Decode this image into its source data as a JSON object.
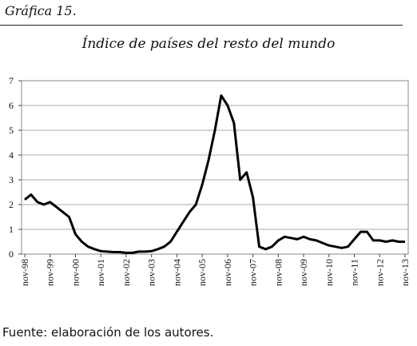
{
  "figure_label": "Gráfica 15.",
  "source_note": "Fuente: elaboración de los autores.",
  "chart_data": {
    "type": "line",
    "title": "Índice de países del resto del mundo",
    "xlabel": "",
    "ylabel": "",
    "ylim": [
      0,
      7
    ],
    "yticks": [
      0,
      1,
      2,
      3,
      4,
      5,
      6,
      7
    ],
    "x_tick_labels": [
      "nov-98",
      "nov-99",
      "nov-00",
      "nov-01",
      "nov-02",
      "nov-03",
      "nov-04",
      "nov-05",
      "nov-06",
      "nov-07",
      "nov-08",
      "nov-09",
      "nov-10",
      "nov-11",
      "nov-12",
      "nov-13"
    ],
    "grid": "horizontal",
    "legend": "none",
    "line_color": "#000000",
    "series": [
      {
        "x": [
          "nov-98",
          "feb-99",
          "may-99",
          "ago-99",
          "nov-99",
          "feb-00",
          "may-00",
          "ago-00",
          "nov-00",
          "feb-01",
          "may-01",
          "ago-01",
          "nov-01",
          "feb-02",
          "may-02",
          "ago-02",
          "nov-02",
          "feb-03",
          "may-03",
          "ago-03",
          "nov-03",
          "feb-04",
          "may-04",
          "ago-04",
          "nov-04",
          "feb-05",
          "may-05",
          "ago-05",
          "nov-05",
          "feb-06",
          "may-06",
          "ago-06",
          "nov-06",
          "feb-07",
          "may-07",
          "ago-07",
          "nov-07",
          "feb-08",
          "may-08",
          "ago-08",
          "nov-08",
          "feb-09",
          "may-09",
          "ago-09",
          "nov-09",
          "feb-10",
          "may-10",
          "ago-10",
          "nov-10",
          "feb-11",
          "may-11",
          "ago-11",
          "nov-11",
          "feb-12",
          "may-12",
          "ago-12",
          "nov-12",
          "feb-13",
          "may-13",
          "ago-13",
          "nov-13"
        ],
        "values": [
          2.2,
          2.4,
          2.1,
          2.0,
          2.1,
          1.9,
          1.7,
          1.5,
          0.8,
          0.5,
          0.3,
          0.2,
          0.12,
          0.1,
          0.08,
          0.08,
          0.05,
          0.05,
          0.1,
          0.1,
          0.12,
          0.2,
          0.3,
          0.5,
          0.9,
          1.3,
          1.7,
          2.0,
          2.8,
          3.8,
          5.0,
          6.4,
          6.0,
          5.3,
          3.0,
          3.3,
          2.3,
          0.3,
          0.2,
          0.3,
          0.55,
          0.7,
          0.65,
          0.6,
          0.7,
          0.6,
          0.55,
          0.45,
          0.35,
          0.3,
          0.25,
          0.3,
          0.6,
          0.9,
          0.9,
          0.55,
          0.55,
          0.5,
          0.55,
          0.5,
          0.5
        ]
      }
    ]
  }
}
